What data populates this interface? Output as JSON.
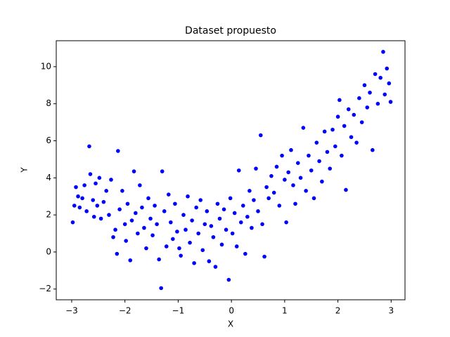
{
  "chart_data": {
    "type": "scatter",
    "title": "Dataset propuesto",
    "x_label": "X",
    "y_label": "Y",
    "series": [
      {
        "color": "#0000ff",
        "x": [
          -2.98,
          -2.95,
          -2.92,
          -2.88,
          -2.85,
          -2.8,
          -2.76,
          -2.72,
          -2.67,
          -2.65,
          -2.6,
          -2.58,
          -2.55,
          -2.52,
          -2.48,
          -2.45,
          -2.4,
          -2.35,
          -2.3,
          -2.26,
          -2.22,
          -2.18,
          -2.15,
          -2.13,
          -2.1,
          -2.05,
          -2.0,
          -1.98,
          -1.95,
          -1.9,
          -1.87,
          -1.83,
          -1.8,
          -1.76,
          -1.72,
          -1.68,
          -1.64,
          -1.6,
          -1.56,
          -1.52,
          -1.48,
          -1.44,
          -1.4,
          -1.36,
          -1.32,
          -1.3,
          -1.26,
          -1.22,
          -1.18,
          -1.14,
          -1.1,
          -1.06,
          -1.02,
          -0.98,
          -0.95,
          -0.9,
          -0.86,
          -0.82,
          -0.78,
          -0.74,
          -0.7,
          -0.66,
          -0.62,
          -0.58,
          -0.54,
          -0.5,
          -0.46,
          -0.42,
          -0.38,
          -0.34,
          -0.3,
          -0.26,
          -0.22,
          -0.18,
          -0.14,
          -0.1,
          -0.05,
          -0.02,
          0.02,
          0.06,
          0.1,
          0.14,
          0.18,
          0.22,
          0.26,
          0.3,
          0.34,
          0.38,
          0.42,
          0.46,
          0.5,
          0.55,
          0.58,
          0.62,
          0.66,
          0.7,
          0.75,
          0.8,
          0.85,
          0.9,
          0.95,
          1.0,
          1.03,
          1.07,
          1.12,
          1.16,
          1.2,
          1.25,
          1.3,
          1.35,
          1.4,
          1.45,
          1.5,
          1.55,
          1.6,
          1.65,
          1.7,
          1.75,
          1.8,
          1.85,
          1.9,
          1.95,
          2.0,
          2.03,
          2.07,
          2.12,
          2.15,
          2.2,
          2.25,
          2.3,
          2.35,
          2.4,
          2.45,
          2.5,
          2.55,
          2.6,
          2.65,
          2.7,
          2.75,
          2.8,
          2.85,
          2.88,
          2.92,
          2.96,
          2.99
        ],
        "values": [
          1.6,
          2.5,
          3.5,
          3.0,
          2.4,
          2.9,
          3.6,
          2.2,
          5.7,
          4.2,
          2.8,
          1.9,
          3.7,
          2.5,
          4.0,
          1.8,
          2.7,
          3.3,
          2.0,
          3.9,
          0.8,
          1.2,
          -0.1,
          5.45,
          2.3,
          3.3,
          1.5,
          0.6,
          2.6,
          -0.45,
          1.7,
          4.35,
          2.1,
          1.0,
          3.6,
          2.4,
          1.3,
          0.2,
          2.9,
          1.8,
          0.9,
          2.5,
          1.5,
          -0.4,
          -1.95,
          4.35,
          2.2,
          0.3,
          3.1,
          1.6,
          0.7,
          2.6,
          1.1,
          0.2,
          -0.2,
          2.0,
          1.2,
          3.0,
          0.5,
          1.7,
          -0.6,
          2.4,
          1.0,
          2.8,
          0.1,
          1.5,
          2.2,
          -0.5,
          1.4,
          0.8,
          -0.8,
          2.6,
          1.8,
          0.4,
          2.3,
          1.2,
          -1.5,
          2.9,
          1.0,
          2.1,
          0.3,
          4.4,
          1.6,
          2.5,
          -0.1,
          1.9,
          3.3,
          1.3,
          2.8,
          4.5,
          2.2,
          6.3,
          1.5,
          -0.25,
          3.5,
          2.9,
          4.1,
          3.2,
          4.6,
          2.5,
          5.2,
          3.9,
          1.6,
          4.3,
          5.5,
          3.6,
          2.6,
          4.8,
          4.0,
          6.7,
          3.3,
          5.2,
          4.4,
          2.9,
          5.9,
          4.9,
          3.8,
          6.5,
          5.4,
          4.5,
          6.6,
          5.7,
          7.3,
          8.2,
          5.2,
          6.8,
          3.35,
          7.7,
          6.2,
          7.4,
          5.9,
          8.3,
          7.0,
          9.0,
          7.8,
          8.6,
          5.5,
          9.6,
          8.0,
          9.4,
          10.8,
          8.5,
          9.9,
          9.1,
          8.1
        ]
      }
    ],
    "xlim": [
      -3.29,
      3.26
    ],
    "ylim": [
      -2.58,
      11.4
    ],
    "xticks": [
      {
        "value": -3,
        "label": "−3"
      },
      {
        "value": -2,
        "label": "−2"
      },
      {
        "value": -1,
        "label": "−1"
      },
      0,
      1,
      2,
      3
    ],
    "yticks": [
      {
        "value": -2,
        "label": "−2"
      },
      0,
      2,
      4,
      6,
      8,
      10
    ]
  }
}
